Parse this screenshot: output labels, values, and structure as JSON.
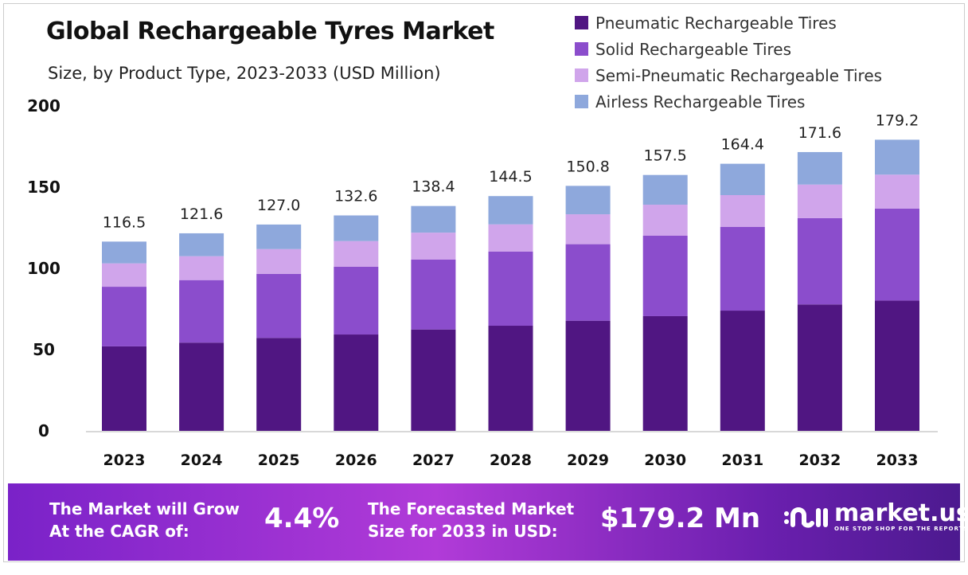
{
  "chart_data": {
    "type": "bar",
    "stacked": true,
    "title": "Global Rechargeable Tyres Market",
    "subtitle": "Size, by Product Type, 2023-2033 (USD Million)",
    "categories": [
      "2023",
      "2024",
      "2025",
      "2026",
      "2027",
      "2028",
      "2029",
      "2030",
      "2031",
      "2032",
      "2033"
    ],
    "series": [
      {
        "name": "Pneumatic Rechargeable Tires",
        "color": "#501682",
        "values": [
          52.0,
          54.3,
          57.2,
          59.3,
          62.4,
          64.7,
          67.8,
          70.6,
          74.0,
          77.8,
          80.2
        ]
      },
      {
        "name": "Solid Rechargeable Tires",
        "color": "#8b4dcc",
        "values": [
          36.7,
          38.5,
          39.4,
          41.7,
          43.0,
          45.6,
          47.1,
          49.5,
          51.5,
          53.1,
          56.6
        ]
      },
      {
        "name": "Semi-Pneumatic Rechargeable Tires",
        "color": "#d0a5eb",
        "values": [
          14.4,
          14.7,
          15.3,
          15.8,
          16.6,
          16.8,
          18.4,
          19.1,
          19.6,
          20.7,
          20.9
        ]
      },
      {
        "name": "Airless Rechargeable Tires",
        "color": "#8ea8dc",
        "values": [
          13.4,
          14.1,
          15.1,
          15.8,
          16.4,
          17.4,
          17.5,
          18.3,
          19.3,
          20.0,
          21.5
        ]
      }
    ],
    "totals": [
      "116.5",
      "121.6",
      "127.0",
      "132.6",
      "138.4",
      "144.5",
      "150.8",
      "157.5",
      "164.4",
      "171.6",
      "179.2"
    ],
    "yticks": [
      "0",
      "50",
      "100",
      "150",
      "200"
    ],
    "ylim": [
      0,
      200
    ],
    "grid": false,
    "legend": "top-right"
  },
  "footer": {
    "cagr_label": [
      "The Market will Grow",
      "At the CAGR of:"
    ],
    "cagr_value": "4.4%",
    "forecast_label": [
      "The Forecasted Market",
      "Size for 2033 in USD:"
    ],
    "forecast_value": "$179.2 Mn",
    "brand": "market.us",
    "tagline": "ONE STOP SHOP FOR THE REPORTS"
  }
}
